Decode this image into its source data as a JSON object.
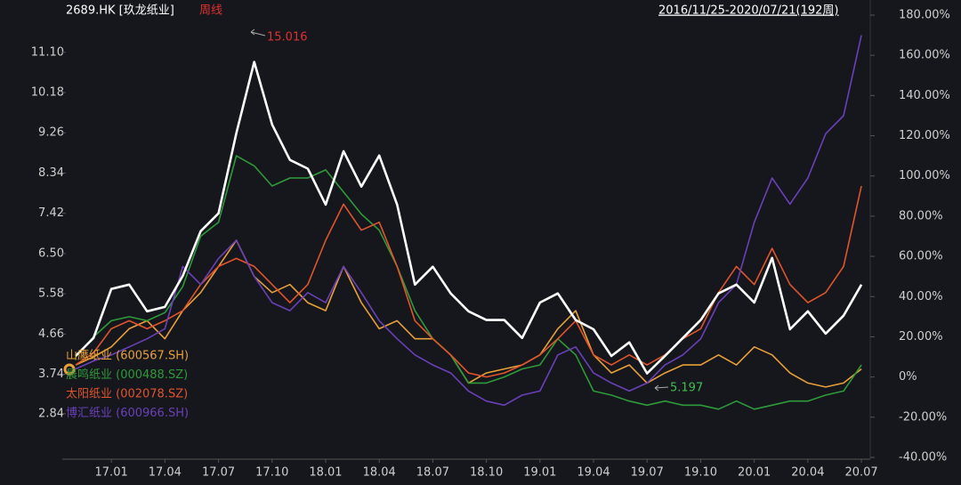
{
  "chart_data": {
    "type": "line",
    "title": "2689.HK [玖龙纸业]",
    "period": "周线",
    "range_label": "2016/11/25-2020/07/21(192周)",
    "annotations": [
      "15.016",
      "5.197"
    ],
    "categories": [
      null,
      null,
      "17.01",
      null,
      null,
      "17.04",
      null,
      null,
      "17.07",
      null,
      null,
      "17.10",
      null,
      null,
      "18.01",
      null,
      null,
      "18.04",
      null,
      null,
      "18.07",
      null,
      null,
      "18.10",
      null,
      null,
      "19.01",
      null,
      null,
      "19.04",
      null,
      null,
      "19.07",
      null,
      null,
      "19.10",
      null,
      null,
      "20.01",
      null,
      null,
      "20.04",
      null,
      null,
      "20.07"
    ],
    "ylim": [
      1.84,
      11.95
    ],
    "yticks": [
      2.84,
      3.74,
      4.66,
      5.58,
      {
        "value": 6.5,
        "label": "6.50"
      },
      7.42,
      8.34,
      9.26,
      10.18,
      {
        "value": 11.1,
        "label": "11.10"
      }
    ],
    "y2lim": [
      -40,
      180
    ],
    "y2ticks": [
      {
        "value": -40,
        "label": "-40.00%"
      },
      {
        "value": -20,
        "label": "-20.00%"
      },
      {
        "value": 0,
        "label": "0%"
      },
      {
        "value": 20,
        "label": "20.00%"
      },
      {
        "value": 40,
        "label": "40.00%"
      },
      {
        "value": 60,
        "label": "60.00%"
      },
      {
        "value": 80,
        "label": "80.00%"
      },
      {
        "value": 100,
        "label": "100.00%"
      },
      {
        "value": 120,
        "label": "120.00%"
      },
      {
        "value": 140,
        "label": "140.00%"
      },
      {
        "value": 160,
        "label": "160.00%"
      },
      {
        "value": 180,
        "label": "180.00%"
      }
    ],
    "series": [
      {
        "name": "山鹰纸业 (600567.SH)",
        "color": "#e8a038",
        "axis": "y2",
        "values": [
          6,
          10,
          15,
          24,
          28,
          19,
          33,
          42,
          55,
          68,
          50,
          42,
          46,
          37,
          33,
          55,
          37,
          24,
          28,
          19,
          19,
          11,
          -3,
          2,
          4,
          6,
          11,
          24,
          33,
          11,
          2,
          6,
          -3,
          2,
          6,
          6,
          11,
          6,
          15,
          11,
          2,
          -3,
          -5,
          -3,
          4
        ]
      },
      {
        "name": "晨鸣纸业 (000488.SZ)",
        "color": "#2e9a3a",
        "axis": "y2",
        "values": [
          10,
          20,
          28,
          30,
          28,
          32,
          45,
          70,
          77,
          110,
          105,
          95,
          99,
          99,
          103,
          92,
          81,
          73,
          55,
          33,
          19,
          11,
          -3,
          -3,
          0,
          4,
          6,
          19,
          11,
          -7,
          -9,
          -12,
          -14,
          -12,
          -14,
          -14,
          -16,
          -12,
          -16,
          -14,
          -12,
          -12,
          -9,
          -7,
          6
        ]
      },
      {
        "name": "太阳纸业 (002078.SZ)",
        "color": "#e0552c",
        "axis": "y2",
        "values": [
          6,
          12,
          24,
          28,
          24,
          28,
          33,
          46,
          55,
          59,
          55,
          46,
          37,
          46,
          68,
          86,
          73,
          77,
          55,
          28,
          19,
          11,
          2,
          0,
          2,
          6,
          11,
          19,
          28,
          11,
          6,
          11,
          6,
          11,
          19,
          24,
          42,
          55,
          46,
          64,
          46,
          37,
          42,
          55,
          95
        ]
      },
      {
        "name": "博汇纸业 (600966.SH)",
        "color": "#6a40b8",
        "axis": "y2",
        "values": [
          4,
          8,
          11,
          15,
          19,
          24,
          55,
          46,
          59,
          68,
          50,
          37,
          33,
          42,
          37,
          55,
          42,
          28,
          19,
          11,
          6,
          2,
          -7,
          -12,
          -14,
          -9,
          -7,
          11,
          15,
          2,
          -3,
          -7,
          -3,
          6,
          11,
          19,
          37,
          46,
          77,
          99,
          86,
          99,
          121,
          130,
          170
        ]
      },
      {
        "color": "#ffffff",
        "values": [
          4.16,
          4.57,
          5.69,
          5.79,
          5.18,
          5.28,
          5.99,
          7.01,
          7.42,
          9.25,
          10.88,
          9.45,
          8.64,
          8.44,
          7.62,
          8.84,
          8.03,
          8.74,
          7.62,
          5.79,
          6.2,
          5.59,
          5.18,
          4.98,
          4.98,
          4.57,
          5.38,
          5.59,
          4.98,
          4.77,
          4.16,
          4.47,
          3.76,
          4.16,
          4.57,
          4.98,
          5.59,
          5.79,
          5.38,
          6.4,
          4.77,
          5.18,
          4.67,
          5.08,
          5.79
        ]
      }
    ]
  }
}
